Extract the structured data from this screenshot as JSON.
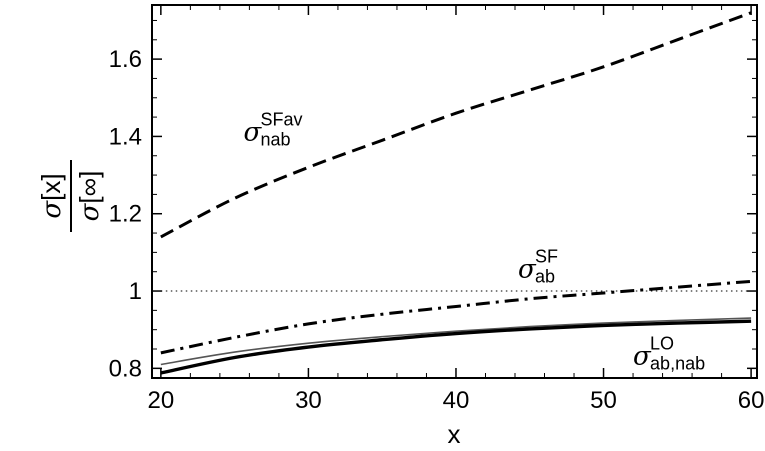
{
  "chart_data": {
    "type": "line",
    "xlabel": "x",
    "ylabel": {
      "numerator": {
        "symbol": "σ",
        "arg": "[x]"
      },
      "denominator": {
        "symbol": "σ",
        "arg": "[∞]"
      }
    },
    "xlim": [
      19.4,
      60.4
    ],
    "ylim": [
      0.775,
      1.74
    ],
    "x_ticks": [
      20,
      30,
      40,
      50,
      60
    ],
    "x_tick_labels": [
      "20",
      "30",
      "40",
      "50",
      "60"
    ],
    "y_ticks": [
      0.8,
      1.0,
      1.2,
      1.4,
      1.6
    ],
    "y_tick_labels": [
      "0.8",
      "1",
      "1.2",
      "1.4",
      "1.6"
    ],
    "grid": false,
    "x": [
      20,
      25,
      30,
      35,
      40,
      45,
      50,
      55,
      60
    ],
    "series": [
      {
        "style": "dashed",
        "values": [
          1.14,
          1.24,
          1.32,
          1.39,
          1.46,
          1.52,
          1.58,
          1.65,
          1.72
        ]
      },
      {
        "style": "dash-dot",
        "values": [
          0.84,
          0.88,
          0.915,
          0.94,
          0.96,
          0.98,
          0.995,
          1.01,
          1.025
        ]
      },
      {
        "style": "thin-solid",
        "values": [
          0.81,
          0.842,
          0.865,
          0.882,
          0.896,
          0.908,
          0.917,
          0.924,
          0.93
        ]
      },
      {
        "style": "thick-solid",
        "values": [
          0.788,
          0.828,
          0.855,
          0.874,
          0.89,
          0.902,
          0.911,
          0.917,
          0.922
        ]
      },
      {
        "style": "dotted-reference",
        "values": [
          1,
          1,
          1,
          1,
          1,
          1,
          1,
          1,
          1
        ]
      }
    ],
    "annotations": [
      {
        "symbol": "σ",
        "sup": "SFav",
        "sub": "nab",
        "at_x": 25.6,
        "at_y": 1.39
      },
      {
        "symbol": "σ",
        "sup": "SF",
        "sub": "ab",
        "at_x": 44.2,
        "at_y": 1.035
      },
      {
        "symbol": "σ",
        "sup": "LO",
        "sub": "ab,nab",
        "at_x": 52.0,
        "at_y": 0.81
      }
    ]
  }
}
